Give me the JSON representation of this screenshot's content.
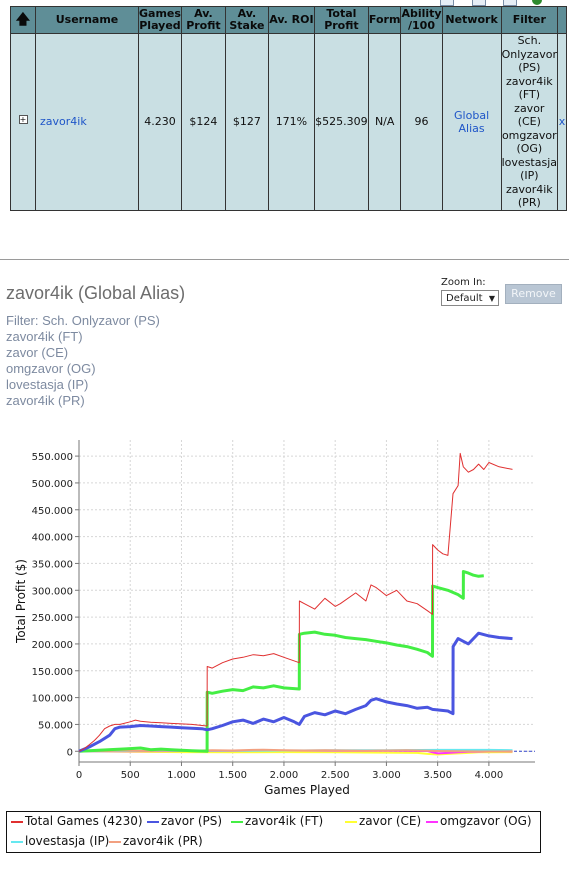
{
  "table": {
    "headers": [
      "Username",
      "Games Played",
      "Av. Profit",
      "Av. Stake",
      "Av. ROI",
      "Total Profit",
      "Form",
      "Ability /100",
      "Network",
      "Filter"
    ],
    "row": {
      "username": "zavor4ik",
      "games_played": "4.230",
      "av_profit": "$124",
      "av_stake": "$127",
      "av_roi": "171%",
      "total_profit": "$525.309",
      "form": "N/A",
      "ability": "96",
      "network": "Global Alias",
      "filter": [
        "Sch.",
        "Onlyzavor",
        "(PS)",
        "zavor4ik",
        "(FT)",
        "zavor",
        "(CE)",
        "omgzavor",
        "(OG)",
        "lovestasja",
        "(IP)",
        "zavor4ik",
        "(PR)"
      ],
      "remove": "x"
    }
  },
  "chart_panel": {
    "title": "zavor4ik (Global Alias)",
    "filter_lines": [
      "Filter: Sch. Onlyzavor (PS)",
      "zavor4ik (FT)",
      "zavor (CE)",
      "omgzavor (OG)",
      "lovestasja (IP)",
      "zavor4ik (PR)"
    ],
    "zoom_label": "Zoom In:",
    "zoom_value": "Default",
    "remove_label": "Remove"
  },
  "colors": {
    "header_bg": "#5f8e97",
    "row_bg": "#c9dfe3",
    "link": "#1e55c8"
  },
  "chart_data": {
    "type": "line",
    "xlabel": "Games Played",
    "ylabel": "Total Profit ($)",
    "xlim": [
      0,
      4450
    ],
    "ylim": [
      -20000,
      580000
    ],
    "xticks": [
      0,
      500,
      1000,
      1500,
      2000,
      2500,
      3000,
      3500,
      4000
    ],
    "xtick_labels": [
      "0",
      "500",
      "1.000",
      "1.500",
      "2.000",
      "2.500",
      "3.000",
      "3.500",
      "4.000"
    ],
    "yticks": [
      0,
      50000,
      100000,
      150000,
      200000,
      250000,
      300000,
      350000,
      400000,
      450000,
      500000,
      550000
    ],
    "ytick_labels": [
      "0",
      "50.000",
      "100.000",
      "150.000",
      "200.000",
      "250.000",
      "300.000",
      "350.000",
      "400.000",
      "450.000",
      "500.000",
      "550.000"
    ],
    "grid": true,
    "legend_position": "bottom",
    "series": [
      {
        "name": "Total Games (4230)",
        "color": "#e03030",
        "width": 1,
        "x": [
          0,
          50,
          100,
          150,
          200,
          250,
          300,
          350,
          400,
          500,
          550,
          600,
          700,
          800,
          900,
          1000,
          1100,
          1200,
          1250,
          1251,
          1300,
          1400,
          1500,
          1600,
          1700,
          1800,
          1900,
          2000,
          2150,
          2151,
          2200,
          2300,
          2400,
          2500,
          2550,
          2700,
          2800,
          2850,
          2900,
          3000,
          3100,
          3200,
          3300,
          3400,
          3450,
          3451,
          3500,
          3550,
          3600,
          3650,
          3700,
          3720,
          3750,
          3800,
          3850,
          3900,
          3950,
          4000,
          4100,
          4230
        ],
        "y": [
          0,
          5000,
          12000,
          20000,
          30000,
          42000,
          47000,
          50000,
          50000,
          55000,
          58000,
          56000,
          54000,
          53000,
          52000,
          51000,
          50000,
          48000,
          47000,
          158000,
          155000,
          165000,
          172000,
          175000,
          180000,
          178000,
          182000,
          175000,
          165000,
          280000,
          275000,
          265000,
          285000,
          270000,
          275000,
          295000,
          280000,
          310000,
          305000,
          290000,
          300000,
          280000,
          275000,
          262000,
          255000,
          385000,
          375000,
          368000,
          365000,
          480000,
          495000,
          555000,
          530000,
          520000,
          525000,
          535000,
          525000,
          538000,
          530000,
          525309
        ]
      },
      {
        "name": "zavor (PS)",
        "color": "#4a55e0",
        "width": 3,
        "x": [
          0,
          100,
          200,
          300,
          350,
          400,
          500,
          600,
          700,
          800,
          900,
          1000,
          1100,
          1200,
          1250,
          1300,
          1400,
          1500,
          1600,
          1700,
          1800,
          1900,
          2000,
          2100,
          2150,
          2200,
          2300,
          2400,
          2500,
          2600,
          2700,
          2800,
          2850,
          2900,
          3000,
          3100,
          3200,
          3300,
          3400,
          3450,
          3600,
          3650,
          3651,
          3700,
          3750,
          3800,
          3900,
          4000,
          4100,
          4230
        ],
        "y": [
          0,
          8000,
          18000,
          30000,
          42000,
          45000,
          46000,
          48000,
          47000,
          46000,
          45000,
          44000,
          43000,
          42000,
          40000,
          42000,
          48000,
          55000,
          58000,
          52000,
          60000,
          55000,
          63000,
          55000,
          50000,
          65000,
          72000,
          68000,
          75000,
          70000,
          78000,
          85000,
          95000,
          98000,
          92000,
          88000,
          85000,
          80000,
          82000,
          78000,
          75000,
          70000,
          195000,
          210000,
          205000,
          200000,
          220000,
          215000,
          212000,
          210000
        ]
      },
      {
        "name": "zavor4ik (FT)",
        "color": "#44ee44",
        "width": 3,
        "x": [
          0,
          500,
          600,
          700,
          800,
          900,
          1000,
          1100,
          1250,
          1251,
          1300,
          1400,
          1500,
          1600,
          1700,
          1800,
          1900,
          2000,
          2150,
          2151,
          2200,
          2300,
          2400,
          2500,
          2600,
          2700,
          2800,
          2900,
          3000,
          3100,
          3200,
          3300,
          3400,
          3450,
          3451,
          3500,
          3600,
          3700,
          3750,
          3751,
          3800,
          3850,
          3900,
          3950
        ],
        "y": [
          0,
          5000,
          6000,
          3000,
          4000,
          3000,
          2000,
          1000,
          0,
          110000,
          108000,
          112000,
          115000,
          113000,
          120000,
          118000,
          122000,
          118000,
          116000,
          218000,
          220000,
          222000,
          218000,
          216000,
          212000,
          210000,
          208000,
          205000,
          202000,
          198000,
          195000,
          190000,
          184000,
          177000,
          308000,
          305000,
          300000,
          292000,
          285000,
          335000,
          332000,
          328000,
          326000,
          327000
        ]
      },
      {
        "name": "zavor (CE)",
        "color": "#ffff33",
        "width": 2,
        "x": [
          0,
          500,
          1000,
          1500,
          2000,
          2500,
          3000,
          3300,
          3400,
          3500,
          3600,
          3700,
          3800,
          3900,
          4000,
          4230
        ],
        "y": [
          0,
          -1000,
          -1500,
          -2000,
          -1500,
          -2000,
          -2500,
          -3000,
          -5000,
          -6000,
          -5000,
          -4000,
          -3000,
          -2000,
          -2000,
          -1500
        ]
      },
      {
        "name": "omgzavor (OG)",
        "color": "#ff33ff",
        "width": 2,
        "x": [
          0,
          500,
          1000,
          1500,
          2000,
          2500,
          3000,
          3400,
          3450,
          3500,
          3600,
          3700,
          3800,
          3900,
          4000,
          4230
        ],
        "y": [
          0,
          0,
          500,
          1000,
          1500,
          1000,
          1000,
          500,
          -2000,
          -4000,
          -3000,
          -2000,
          -1000,
          -1000,
          -500,
          -500
        ]
      },
      {
        "name": "lovestasja (IP)",
        "color": "#66e8f0",
        "width": 2,
        "x": [
          0,
          500,
          1000,
          1500,
          2000,
          2500,
          3000,
          3500,
          4000,
          4230
        ],
        "y": [
          0,
          500,
          1000,
          1000,
          1500,
          2000,
          2000,
          2500,
          2500,
          2000
        ]
      },
      {
        "name": "zavor4ik (PR)",
        "color": "#f2a080",
        "width": 2,
        "x": [
          0,
          300,
          400,
          500,
          700,
          800,
          1000,
          1200,
          1300,
          1500,
          1700,
          1800,
          2000,
          2200,
          2400,
          2600,
          2800,
          3000,
          3200,
          3400,
          3500,
          3700,
          3900,
          4100,
          4230
        ],
        "y": [
          0,
          500,
          1500,
          1000,
          500,
          1500,
          1000,
          1500,
          2000,
          1500,
          2500,
          3000,
          2000,
          1500,
          2000,
          1500,
          1000,
          1500,
          2000,
          1000,
          500,
          0,
          -500,
          -500,
          0
        ]
      }
    ]
  }
}
